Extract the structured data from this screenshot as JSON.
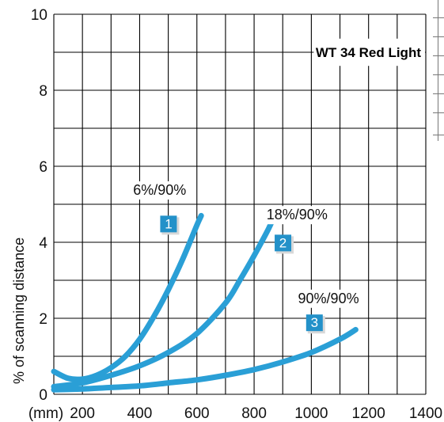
{
  "chart_data": {
    "type": "line",
    "title": "WT 34 Red Light",
    "xlabel": "",
    "ylabel": "% of scanning distance",
    "x_unit_label": "(mm)",
    "xlim": [
      100,
      1400
    ],
    "ylim": [
      0,
      10
    ],
    "x_ticks": [
      200,
      400,
      600,
      800,
      1000,
      1200,
      1400
    ],
    "y_ticks": [
      0,
      2,
      4,
      6,
      8,
      10
    ],
    "grid": true,
    "series": [
      {
        "name": "6%/90%",
        "badge": "1",
        "x": [
          100,
          150,
          200,
          250,
          300,
          350,
          400,
          450,
          500,
          550,
          600,
          615
        ],
        "y": [
          0.6,
          0.42,
          0.4,
          0.5,
          0.7,
          1.0,
          1.45,
          2.05,
          2.75,
          3.55,
          4.45,
          4.7
        ]
      },
      {
        "name": "18%/90%",
        "badge": "2",
        "x": [
          100,
          200,
          300,
          400,
          500,
          600,
          700,
          750,
          800,
          850,
          870
        ],
        "y": [
          0.2,
          0.3,
          0.5,
          0.75,
          1.1,
          1.6,
          2.4,
          3.0,
          3.65,
          4.35,
          4.7
        ]
      },
      {
        "name": "90%/90%",
        "badge": "3",
        "x": [
          100,
          200,
          300,
          400,
          500,
          600,
          700,
          800,
          900,
          1000,
          1100,
          1155
        ],
        "y": [
          0.12,
          0.14,
          0.18,
          0.22,
          0.3,
          0.38,
          0.5,
          0.65,
          0.85,
          1.1,
          1.45,
          1.7
        ]
      }
    ],
    "colors": {
      "curve": "#2a9fd6",
      "badge": "#2391c9",
      "grid": "#000000"
    }
  }
}
